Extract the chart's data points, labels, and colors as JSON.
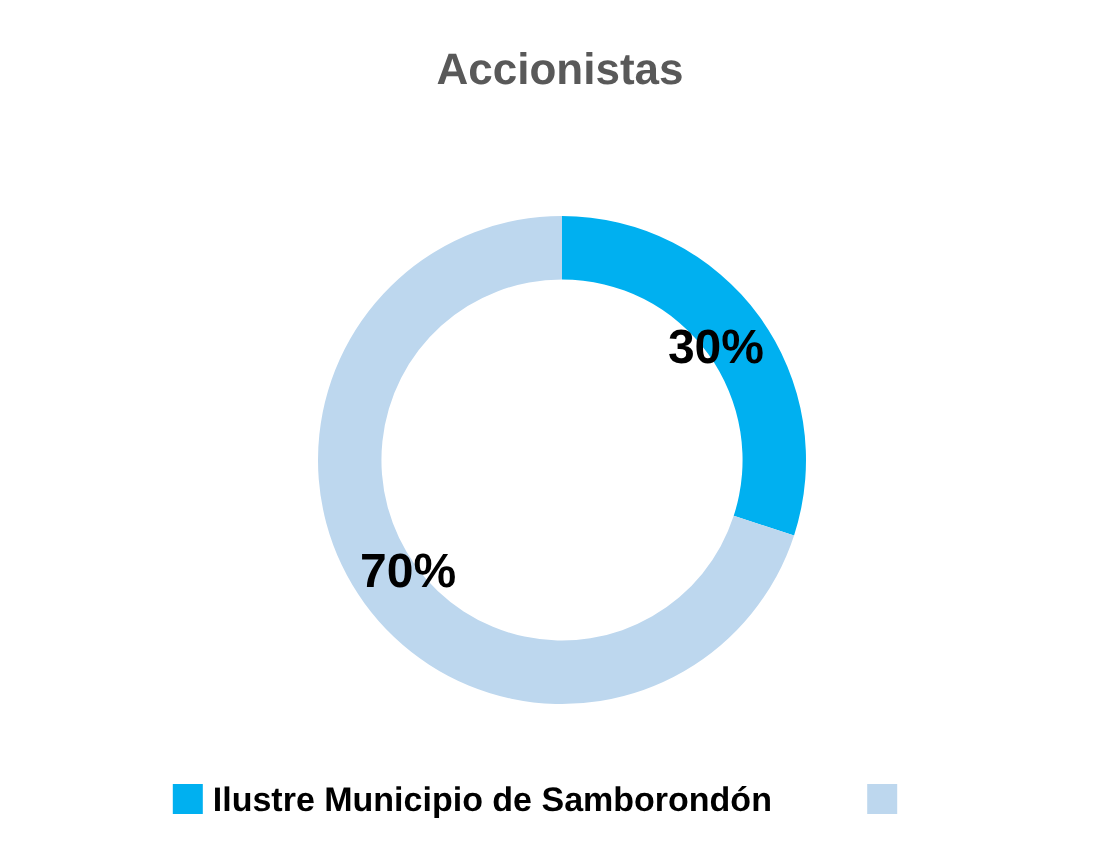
{
  "chart_data": {
    "type": "donut",
    "title": "Accionistas",
    "categories": [
      "Ilustre Municipio de Samborondón",
      null
    ],
    "values": [
      30,
      70
    ],
    "colors": [
      "#00b0f0",
      "#bdd7ee"
    ],
    "value_labels": [
      "30%",
      "70%"
    ],
    "legend": "bottom"
  }
}
